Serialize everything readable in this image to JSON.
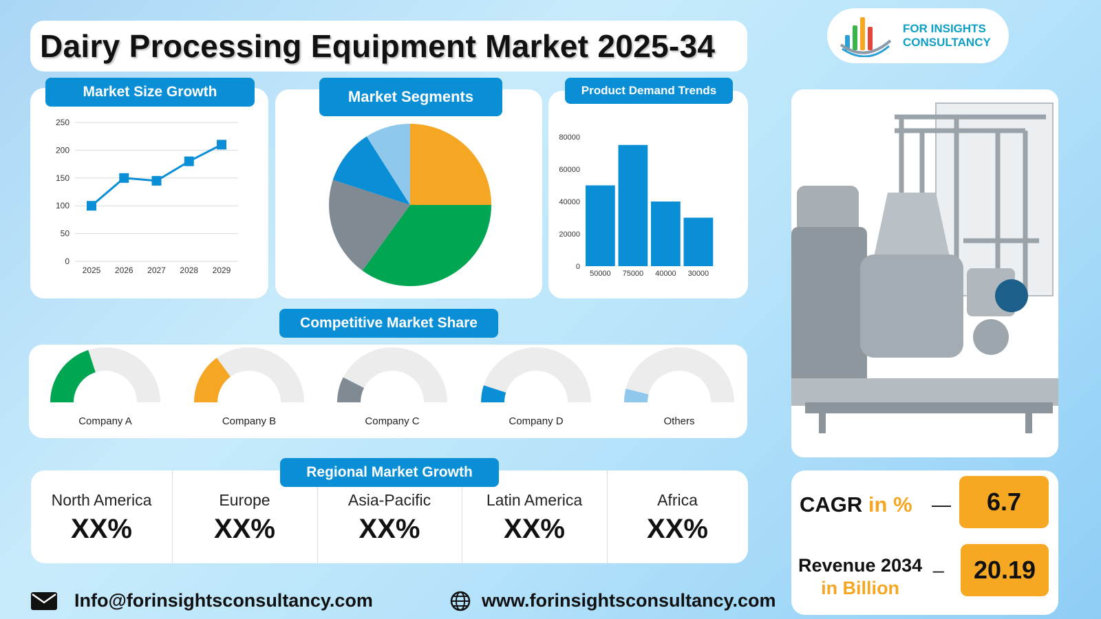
{
  "title": "Dairy Processing Equipment Market 2025-34",
  "logo": {
    "line1": "FOR INSIGHTS",
    "line2": "CONSULTANCY",
    "bar_colors": [
      "#2a9fd8",
      "#3bb54a",
      "#f7a823",
      "#e4463b"
    ]
  },
  "colors": {
    "accent_blue": "#0a8fd6",
    "orange": "#f5a623",
    "green": "#00a651",
    "gray": "#7f8a93",
    "light_blue": "#8fc8ec"
  },
  "panels": {
    "market_size": "Market Size Growth",
    "segments": "Market Segments",
    "demand": "Product Demand Trends",
    "competitive": "Competitive Market Share",
    "regional": "Regional Market Growth"
  },
  "chart_data": [
    {
      "type": "line",
      "x": [
        "2025",
        "2026",
        "2027",
        "2028",
        "2029"
      ],
      "values": [
        100,
        150,
        145,
        180,
        210
      ],
      "yticks": [
        0,
        50,
        100,
        150,
        200,
        250
      ],
      "ylim": [
        0,
        250
      ],
      "grid": true,
      "color": "#0a8fd6"
    },
    {
      "type": "pie",
      "slices": [
        {
          "value": 25,
          "color": "#f5a623"
        },
        {
          "value": 35,
          "color": "#00a651"
        },
        {
          "value": 20,
          "color": "#7f8a93"
        },
        {
          "value": 11,
          "color": "#0a8fd6"
        },
        {
          "value": 9,
          "color": "#8fc8ec"
        }
      ]
    },
    {
      "type": "bar",
      "categories": [
        "50000",
        "75000",
        "40000",
        "30000"
      ],
      "values": [
        50000,
        75000,
        40000,
        30000
      ],
      "yticks": [
        0,
        20000,
        40000,
        60000,
        80000
      ],
      "ylim": [
        0,
        80000
      ],
      "color": "#0a8fd6"
    },
    {
      "type": "gauge",
      "items": [
        {
          "label": "Company A",
          "value": 0.4,
          "color": "#00a651"
        },
        {
          "label": "Company B",
          "value": 0.3,
          "color": "#f5a623"
        },
        {
          "label": "Company C",
          "value": 0.15,
          "color": "#7f8a93"
        },
        {
          "label": "Company D",
          "value": 0.1,
          "color": "#0a8fd6"
        },
        {
          "label": "Others",
          "value": 0.08,
          "color": "#8fc8ec"
        }
      ]
    }
  ],
  "regions": [
    {
      "name": "North America",
      "value": "XX%"
    },
    {
      "name": "Europe",
      "value": "XX%"
    },
    {
      "name": "Asia-Pacific",
      "value": "XX%"
    },
    {
      "name": "Latin America",
      "value": "XX%"
    },
    {
      "name": "Africa",
      "value": "XX%"
    }
  ],
  "stats": {
    "cagr_label": "CAGR",
    "cagr_unit": "in %",
    "cagr_dash": "—",
    "cagr_value": "6.7",
    "revenue_label": "Revenue 2034",
    "revenue_unit": "in Billion",
    "revenue_dash": "_",
    "revenue_value": "20.19"
  },
  "footer": {
    "email": "Info@forinsightsconsultancy.com",
    "website": "www.forinsightsconsultancy.com",
    "email_icon": "mail-icon",
    "web_icon": "globe-icon"
  }
}
